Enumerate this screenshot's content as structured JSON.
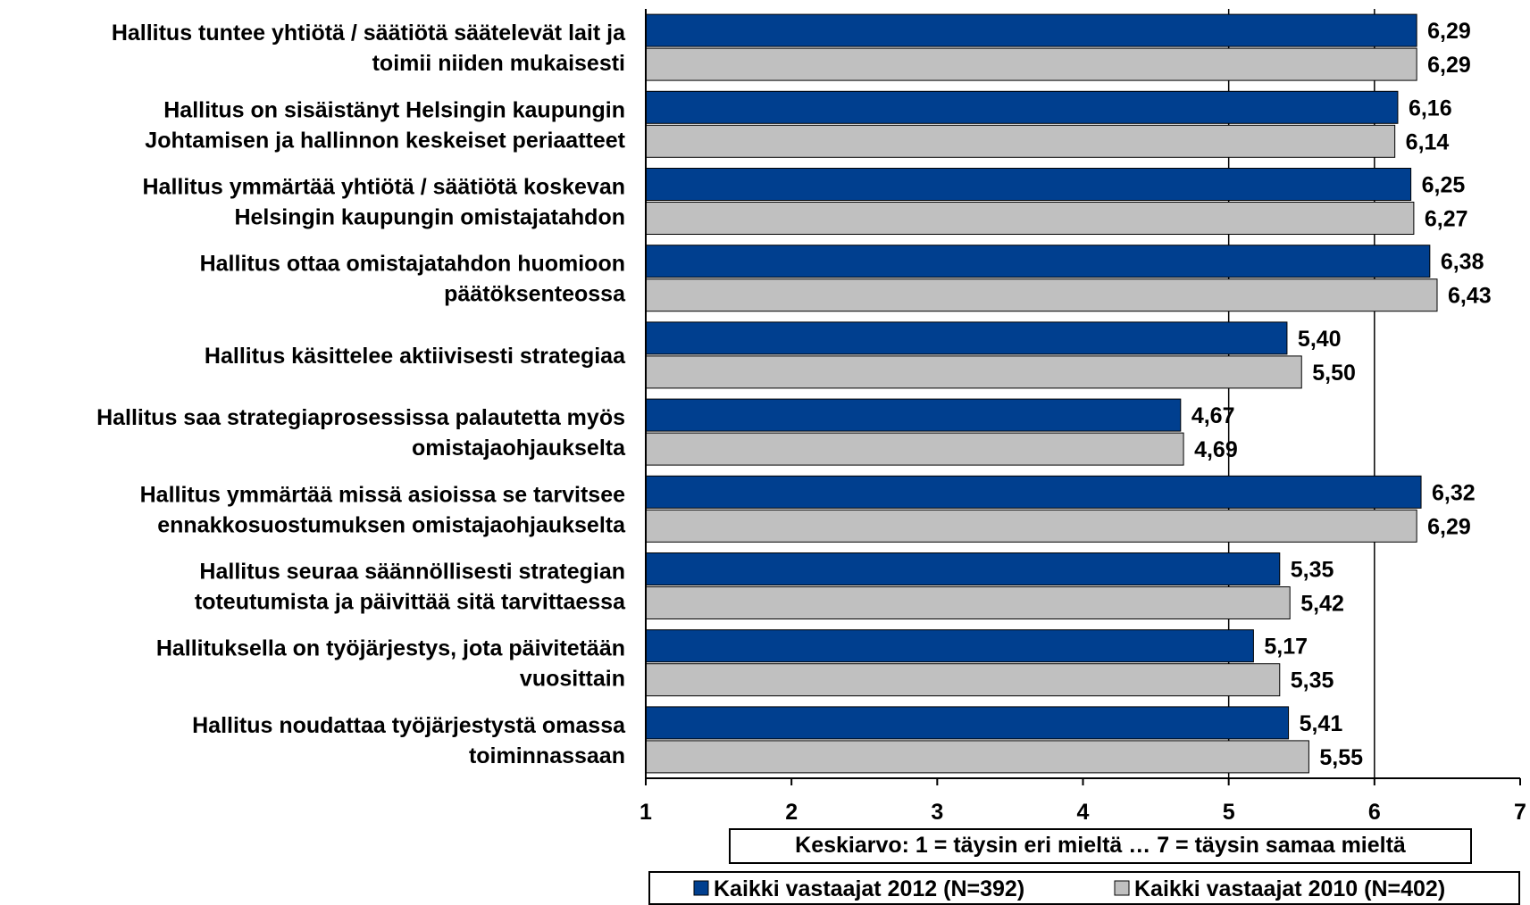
{
  "chart_data": {
    "type": "bar",
    "orientation": "horizontal",
    "categories": [
      [
        "Hallitus tuntee yhtiötä / säätiötä säätelevät lait ja",
        "toimii niiden mukaisesti"
      ],
      [
        "Hallitus on sisäistänyt Helsingin kaupungin",
        "Johtamisen ja hallinnon keskeiset periaatteet"
      ],
      [
        "Hallitus ymmärtää yhtiötä / säätiötä koskevan",
        "Helsingin kaupungin omistajatahdon"
      ],
      [
        "Hallitus ottaa omistajatahdon huomioon",
        "päätöksenteossa"
      ],
      [
        "Hallitus käsittelee aktiivisesti strategiaa"
      ],
      [
        "Hallitus saa strategiaprosessissa palautetta myös",
        "omistajaohjaukselta"
      ],
      [
        "Hallitus ymmärtää missä asioissa se tarvitsee",
        "ennakkosuostumuksen omistajaohjaukselta"
      ],
      [
        "Hallitus seuraa säännöllisesti strategian",
        "toteutumista ja päivittää sitä tarvittaessa"
      ],
      [
        "Hallituksella on työjärjestys, jota päivitetään",
        "vuosittain"
      ],
      [
        "Hallitus noudattaa työjärjestystä omassa",
        "toiminnassaan"
      ]
    ],
    "series": [
      {
        "name": "Kaikki vastaajat 2012 (N=392)",
        "color": "#003f8f",
        "values": [
          6.29,
          6.16,
          6.25,
          6.38,
          5.4,
          4.67,
          6.32,
          5.35,
          5.17,
          5.41
        ],
        "labels": [
          "6,29",
          "6,16",
          "6,25",
          "6,38",
          "5,40",
          "4,67",
          "6,32",
          "5,35",
          "5,17",
          "5,41"
        ]
      },
      {
        "name": "Kaikki vastaajat 2010 (N=402)",
        "color": "#c0c0c0",
        "values": [
          6.29,
          6.14,
          6.27,
          6.43,
          5.5,
          4.69,
          6.29,
          5.42,
          5.35,
          5.55
        ],
        "labels": [
          "6,29",
          "6,14",
          "6,27",
          "6,43",
          "5,50",
          "4,69",
          "6,29",
          "5,42",
          "5,35",
          "5,55"
        ]
      }
    ],
    "xlim": [
      1,
      7
    ],
    "xticks": [
      "1",
      "2",
      "3",
      "4",
      "5",
      "6",
      "7"
    ],
    "xlabel": "Keskiarvo: 1 = täysin eri mieltä … 7 = täysin samaa mieltä",
    "grid": "vertical lines at 5 and 6",
    "legend_position": "bottom"
  }
}
